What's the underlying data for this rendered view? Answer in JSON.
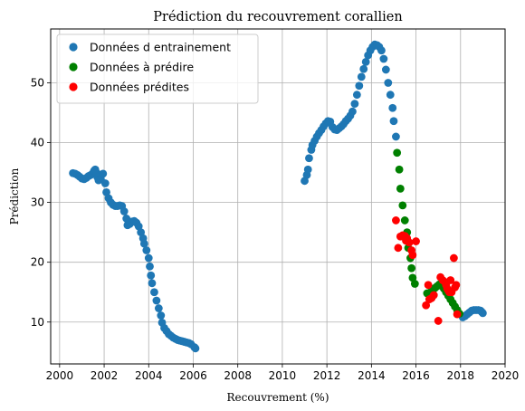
{
  "chart_data": {
    "type": "scatter",
    "title": "Prédiction du recouvrement corallien",
    "xlabel": "Recouvrement (%)",
    "ylabel": "Prédiction",
    "xlim": [
      1999.6,
      2020.0
    ],
    "ylim": [
      3.0,
      59.0
    ],
    "x_ticks": [
      2000,
      2002,
      2004,
      2006,
      2008,
      2010,
      2012,
      2014,
      2016,
      2018,
      2020
    ],
    "x_tick_labels": [
      "2000",
      "2002",
      "2004",
      "2006",
      "2008",
      "2010",
      "2012",
      "2014",
      "2016",
      "2018",
      "2020"
    ],
    "y_ticks": [
      10,
      20,
      30,
      40,
      50
    ],
    "y_tick_labels": [
      "10",
      "20",
      "30",
      "40",
      "50"
    ],
    "grid": true,
    "legend_position": "top-left",
    "series": [
      {
        "name": "Données d entrainement",
        "color": "#1f77b4",
        "points": [
          [
            2000.6,
            34.9
          ],
          [
            2000.7,
            34.8
          ],
          [
            2000.8,
            34.6
          ],
          [
            2000.9,
            34.3
          ],
          [
            2001.0,
            34.0
          ],
          [
            2001.1,
            33.9
          ],
          [
            2001.2,
            34.1
          ],
          [
            2001.3,
            34.4
          ],
          [
            2001.4,
            34.6
          ],
          [
            2001.5,
            34.9
          ],
          [
            2001.55,
            35.3
          ],
          [
            2001.6,
            35.5
          ],
          [
            2001.65,
            35.0
          ],
          [
            2001.7,
            34.2
          ],
          [
            2001.75,
            33.7
          ],
          [
            2001.85,
            33.9
          ],
          [
            2001.95,
            34.8
          ],
          [
            2002.05,
            33.2
          ],
          [
            2002.1,
            31.7
          ],
          [
            2002.2,
            30.7
          ],
          [
            2002.3,
            30.0
          ],
          [
            2002.4,
            29.6
          ],
          [
            2002.5,
            29.4
          ],
          [
            2002.6,
            29.4
          ],
          [
            2002.7,
            29.5
          ],
          [
            2002.8,
            29.4
          ],
          [
            2002.9,
            28.5
          ],
          [
            2003.0,
            27.3
          ],
          [
            2003.05,
            26.2
          ],
          [
            2003.15,
            26.4
          ],
          [
            2003.25,
            26.8
          ],
          [
            2003.35,
            26.9
          ],
          [
            2003.45,
            26.6
          ],
          [
            2003.55,
            26.0
          ],
          [
            2003.65,
            25.0
          ],
          [
            2003.75,
            24.0
          ],
          [
            2003.8,
            23.1
          ],
          [
            2003.9,
            22.0
          ],
          [
            2004.0,
            20.7
          ],
          [
            2004.05,
            19.3
          ],
          [
            2004.1,
            17.8
          ],
          [
            2004.15,
            16.5
          ],
          [
            2004.25,
            15.0
          ],
          [
            2004.35,
            13.6
          ],
          [
            2004.45,
            12.3
          ],
          [
            2004.55,
            11.1
          ],
          [
            2004.6,
            9.9
          ],
          [
            2004.7,
            9.0
          ],
          [
            2004.8,
            8.5
          ],
          [
            2004.9,
            8.0
          ],
          [
            2005.0,
            7.7
          ],
          [
            2005.1,
            7.4
          ],
          [
            2005.2,
            7.2
          ],
          [
            2005.3,
            7.0
          ],
          [
            2005.4,
            6.9
          ],
          [
            2005.5,
            6.8
          ],
          [
            2005.6,
            6.7
          ],
          [
            2005.7,
            6.6
          ],
          [
            2005.8,
            6.5
          ],
          [
            2005.9,
            6.3
          ],
          [
            2006.05,
            5.8
          ],
          [
            2006.1,
            5.6
          ],
          [
            2011.0,
            33.6
          ],
          [
            2011.1,
            34.6
          ],
          [
            2011.15,
            35.5
          ],
          [
            2011.2,
            37.4
          ],
          [
            2011.3,
            38.8
          ],
          [
            2011.35,
            39.6
          ],
          [
            2011.45,
            40.3
          ],
          [
            2011.55,
            41.0
          ],
          [
            2011.65,
            41.6
          ],
          [
            2011.75,
            42.1
          ],
          [
            2011.85,
            42.7
          ],
          [
            2011.95,
            43.2
          ],
          [
            2012.05,
            43.6
          ],
          [
            2012.15,
            43.5
          ],
          [
            2012.25,
            42.6
          ],
          [
            2012.35,
            42.2
          ],
          [
            2012.45,
            42.1
          ],
          [
            2012.55,
            42.4
          ],
          [
            2012.65,
            42.7
          ],
          [
            2012.75,
            43.1
          ],
          [
            2012.85,
            43.6
          ],
          [
            2012.95,
            44.0
          ],
          [
            2013.05,
            44.5
          ],
          [
            2013.15,
            45.2
          ],
          [
            2013.25,
            46.5
          ],
          [
            2013.35,
            48.0
          ],
          [
            2013.45,
            49.5
          ],
          [
            2013.55,
            51.0
          ],
          [
            2013.65,
            52.3
          ],
          [
            2013.75,
            53.5
          ],
          [
            2013.85,
            54.6
          ],
          [
            2013.95,
            55.4
          ],
          [
            2014.05,
            56.0
          ],
          [
            2014.15,
            56.4
          ],
          [
            2014.25,
            56.3
          ],
          [
            2014.35,
            56.0
          ],
          [
            2014.45,
            55.4
          ],
          [
            2014.55,
            54.0
          ],
          [
            2014.65,
            52.2
          ],
          [
            2014.75,
            50.0
          ],
          [
            2014.85,
            48.0
          ],
          [
            2014.95,
            45.8
          ],
          [
            2015.0,
            43.6
          ],
          [
            2015.1,
            41.0
          ],
          [
            2018.1,
            10.8
          ],
          [
            2018.2,
            11.0
          ],
          [
            2018.3,
            11.3
          ],
          [
            2018.4,
            11.6
          ],
          [
            2018.5,
            11.9
          ],
          [
            2018.6,
            12.0
          ],
          [
            2018.7,
            12.0
          ],
          [
            2018.8,
            12.0
          ],
          [
            2018.9,
            11.9
          ],
          [
            2018.95,
            11.7
          ],
          [
            2019.0,
            11.5
          ]
        ]
      },
      {
        "name": "Données à prédire",
        "color": "#008000",
        "points": [
          [
            2015.15,
            38.3
          ],
          [
            2015.25,
            35.5
          ],
          [
            2015.3,
            32.3
          ],
          [
            2015.4,
            29.5
          ],
          [
            2015.5,
            27.0
          ],
          [
            2015.6,
            25.0
          ],
          [
            2015.65,
            22.4
          ],
          [
            2015.75,
            20.7
          ],
          [
            2015.8,
            19.0
          ],
          [
            2015.85,
            17.4
          ],
          [
            2015.95,
            16.4
          ],
          [
            2016.5,
            14.8
          ],
          [
            2016.65,
            15.0
          ],
          [
            2016.75,
            15.3
          ],
          [
            2016.85,
            15.7
          ],
          [
            2016.95,
            16.0
          ],
          [
            2017.05,
            16.3
          ],
          [
            2017.15,
            16.1
          ],
          [
            2017.25,
            15.6
          ],
          [
            2017.35,
            15.0
          ],
          [
            2017.45,
            14.4
          ],
          [
            2017.55,
            13.8
          ],
          [
            2017.65,
            13.2
          ],
          [
            2017.75,
            12.6
          ],
          [
            2017.85,
            12.0
          ],
          [
            2017.95,
            11.4
          ]
        ]
      },
      {
        "name": "Données prédites",
        "color": "#ff0000",
        "points": [
          [
            2015.1,
            27.0
          ],
          [
            2015.2,
            22.4
          ],
          [
            2015.3,
            24.3
          ],
          [
            2015.4,
            24.5
          ],
          [
            2015.5,
            24.4
          ],
          [
            2015.55,
            23.6
          ],
          [
            2015.6,
            24.0
          ],
          [
            2015.7,
            23.3
          ],
          [
            2015.8,
            22.0
          ],
          [
            2015.85,
            21.2
          ],
          [
            2016.0,
            23.5
          ],
          [
            2016.45,
            12.8
          ],
          [
            2016.55,
            16.2
          ],
          [
            2016.6,
            13.8
          ],
          [
            2016.7,
            14.0
          ],
          [
            2016.8,
            14.5
          ],
          [
            2017.0,
            10.2
          ],
          [
            2017.1,
            17.5
          ],
          [
            2017.2,
            17.0
          ],
          [
            2017.3,
            16.7
          ],
          [
            2017.35,
            16.2
          ],
          [
            2017.4,
            15.6
          ],
          [
            2017.45,
            15.3
          ],
          [
            2017.5,
            15.0
          ],
          [
            2017.55,
            17.0
          ],
          [
            2017.6,
            15.0
          ],
          [
            2017.7,
            20.7
          ],
          [
            2017.75,
            15.8
          ],
          [
            2017.8,
            16.2
          ],
          [
            2017.85,
            11.3
          ]
        ]
      }
    ]
  }
}
